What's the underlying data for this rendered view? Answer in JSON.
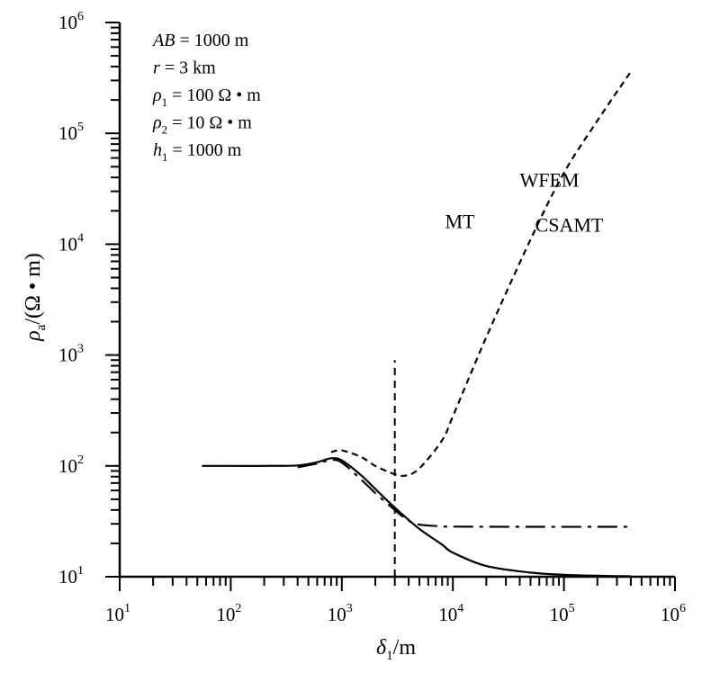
{
  "chart_data": {
    "type": "line",
    "x_scale": "log",
    "y_scale": "log",
    "xlim": [
      10,
      1000000
    ],
    "ylim": [
      10,
      1000000
    ],
    "x_ticks": [
      {
        "base": "10",
        "exp": "1",
        "value": 10
      },
      {
        "base": "10",
        "exp": "2",
        "value": 100
      },
      {
        "base": "10",
        "exp": "3",
        "value": 1000
      },
      {
        "base": "10",
        "exp": "4",
        "value": 10000
      },
      {
        "base": "10",
        "exp": "5",
        "value": 100000
      },
      {
        "base": "10",
        "exp": "6",
        "value": 1000000
      }
    ],
    "y_ticks": [
      {
        "base": "10",
        "exp": "1",
        "value": 10
      },
      {
        "base": "10",
        "exp": "2",
        "value": 100
      },
      {
        "base": "10",
        "exp": "3",
        "value": 1000
      },
      {
        "base": "10",
        "exp": "4",
        "value": 10000
      },
      {
        "base": "10",
        "exp": "5",
        "value": 100000
      },
      {
        "base": "10",
        "exp": "6",
        "value": 1000000
      }
    ],
    "xlabel": {
      "main": "δ",
      "sub": "1",
      "rest": "/m"
    },
    "ylabel": {
      "main": "ρ",
      "sub": "a",
      "rest": "/(Ω • m)"
    },
    "annotations": [
      {
        "pre": "",
        "var": "AB",
        "sub": "",
        "rest": " = 1000 m"
      },
      {
        "pre": "",
        "var": "r",
        "sub": "",
        "rest": " = 3 km"
      },
      {
        "pre": "",
        "var": "ρ",
        "sub": "1",
        "rest": " = 100 Ω • m"
      },
      {
        "pre": "",
        "var": "ρ",
        "sub": "2",
        "rest": " = 10 Ω • m"
      },
      {
        "pre": "",
        "var": "h",
        "sub": "1",
        "rest": " = 1000 m"
      }
    ],
    "reference_line": {
      "x": 3000,
      "y_range": [
        10,
        900
      ],
      "style": "dashed"
    },
    "series": [
      {
        "name": "MT",
        "style": "solid",
        "color": "#000000",
        "x": [
          55,
          100,
          200,
          400,
          600,
          800,
          1000,
          1500,
          2000,
          3000,
          5000,
          8000,
          10000,
          20000,
          50000,
          100000,
          200000,
          400000
        ],
        "y": [
          100,
          100,
          100,
          101,
          108,
          117,
          112,
          82,
          62,
          42,
          27,
          19.5,
          16.5,
          12.5,
          10.9,
          10.4,
          10.2,
          10.1
        ]
      },
      {
        "name": "CSAMT",
        "style": "dashed",
        "color": "#000000",
        "x": [
          800,
          1000,
          1500,
          2000,
          3000,
          3800,
          5000,
          8000,
          10000,
          20000,
          50000,
          100000,
          200000,
          400000
        ],
        "y": [
          133,
          138,
          120,
          100,
          84,
          82,
          95,
          170,
          280,
          1450,
          11000,
          44000,
          130000,
          360000
        ]
      },
      {
        "name": "WFEM",
        "style": "dashdot",
        "color": "#000000",
        "x": [
          400,
          600,
          800,
          1000,
          1500,
          2000,
          3000,
          4000,
          5000,
          8000,
          10000,
          50000,
          400000
        ],
        "y": [
          97,
          105,
          113,
          107,
          75,
          57,
          40,
          32,
          29.5,
          28.5,
          28.3,
          28.2,
          28.2
        ]
      }
    ],
    "series_labels": [
      {
        "name": "CSAMT",
        "x": 55000,
        "y": 13000
      },
      {
        "name": "WFEM",
        "x": 40000,
        "y": 33000
      },
      {
        "name": "MT",
        "x": 8500,
        "y": 14000
      }
    ]
  }
}
